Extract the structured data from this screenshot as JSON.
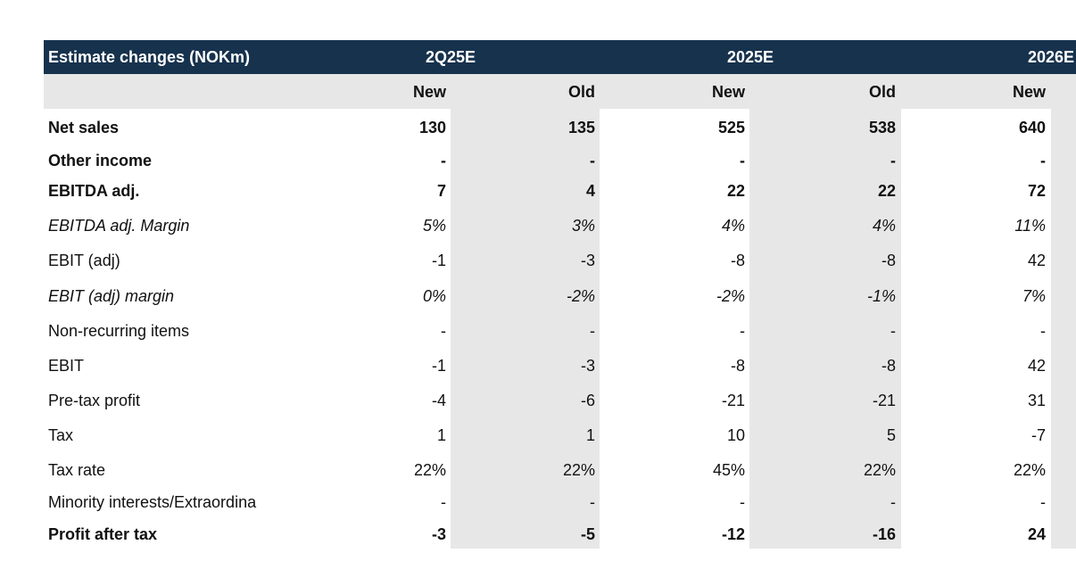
{
  "table": {
    "title": "Estimate changes (NOKm)",
    "periods": [
      "2Q25E",
      "2025E",
      "2026E"
    ],
    "subheaders": [
      "New",
      "Old",
      "New",
      "Old",
      "New"
    ],
    "rows": [
      {
        "label": "Net sales",
        "cells": [
          "130",
          "135",
          "525",
          "538",
          "640"
        ]
      },
      {
        "label": "Other income",
        "cells": [
          "-",
          "-",
          "-",
          "-",
          "-"
        ]
      },
      {
        "label": "EBITDA adj.",
        "cells": [
          "7",
          "4",
          "22",
          "22",
          "72"
        ]
      },
      {
        "label": "EBITDA adj. Margin",
        "cells": [
          "5%",
          "3%",
          "4%",
          "4%",
          "11%"
        ]
      },
      {
        "label": "EBIT (adj)",
        "cells": [
          "-1",
          "-3",
          "-8",
          "-8",
          "42"
        ]
      },
      {
        "label": "EBIT (adj) margin",
        "cells": [
          "0%",
          "-2%",
          "-2%",
          "-1%",
          "7%"
        ]
      },
      {
        "label": "Non-recurring items",
        "cells": [
          "-",
          "-",
          "-",
          "-",
          "-"
        ]
      },
      {
        "label": "EBIT",
        "cells": [
          "-1",
          "-3",
          "-8",
          "-8",
          "42"
        ]
      },
      {
        "label": "Pre-tax profit",
        "cells": [
          "-4",
          "-6",
          "-21",
          "-21",
          "31"
        ]
      },
      {
        "label": "Tax",
        "cells": [
          "1",
          "1",
          "10",
          "5",
          "-7"
        ]
      },
      {
        "label": "Tax rate",
        "cells": [
          "22%",
          "22%",
          "45%",
          "22%",
          "22%"
        ]
      },
      {
        "label": "Minority interests/Extraordina",
        "cells": [
          "-",
          "-",
          "-",
          "-",
          "-"
        ]
      },
      {
        "label": "Profit after tax",
        "cells": [
          "-3",
          "-5",
          "-12",
          "-16",
          "24"
        ]
      }
    ]
  }
}
